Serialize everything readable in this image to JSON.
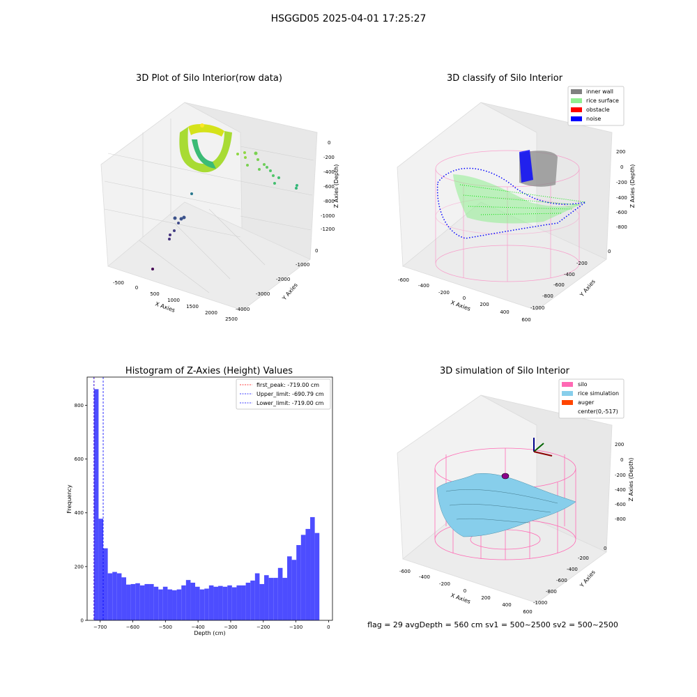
{
  "suptitle": "HSGGD05 2025-04-01 17:25:27",
  "footer": "flag = 29  avgDepth = 560 cm  sv1 = 500~2500  sv2 = 500~2500",
  "colors": {
    "histogram": "#4d4dff",
    "first_peak_line": "#ff0000",
    "limit_line": "#0000ff",
    "inner_wall": "#808080",
    "rice_surface": "#90ee90",
    "obstacle": "#ff0000",
    "noise": "#0000ff",
    "silo": "#ff69b4",
    "rice_simulation": "#87ceeb",
    "auger": "#ff4500"
  },
  "chart_data": [
    {
      "type": "scatter",
      "projection": "3d",
      "title": "3D Plot of Silo Interior(row data)",
      "xlabel": "X Axies",
      "ylabel": "Y Axies",
      "zlabel": "Z Axies (Depth)",
      "x_ticks": [
        "-500",
        "0",
        "500",
        "1000",
        "1500",
        "2000",
        "2500"
      ],
      "y_ticks": [
        "0",
        "-1000",
        "-2000",
        "-3000",
        "-4000"
      ],
      "z_ticks": [
        "0",
        "-200",
        "-400",
        "-600",
        "-800",
        "-1000",
        "-1200"
      ],
      "colormap": "viridis"
    },
    {
      "type": "scatter",
      "projection": "3d",
      "title": "3D classify of Silo Interior",
      "xlabel": "X Axies",
      "ylabel": "Y Axies",
      "zlabel": "Z Axies (Depth)",
      "x_ticks": [
        "-600",
        "-400",
        "-200",
        "0",
        "200",
        "400",
        "600"
      ],
      "y_ticks": [
        "0",
        "-200",
        "-400",
        "-600",
        "-800",
        "-1000"
      ],
      "z_ticks": [
        "200",
        "0",
        "-200",
        "-400",
        "-600",
        "-800"
      ],
      "legend": [
        "inner wall",
        "rice surface",
        "obstacle",
        "noise"
      ],
      "legend_position": "top-right"
    },
    {
      "type": "bar",
      "title": "Histogram of Z-Axies (Height) Values",
      "xlabel": "Depth (cm)",
      "ylabel": "Frequency",
      "xlim": [
        -740,
        12
      ],
      "ylim": [
        0,
        905
      ],
      "x_ticks": [
        -700,
        -600,
        -500,
        -400,
        -300,
        -200,
        -100,
        0
      ],
      "y_ticks": [
        0,
        200,
        400,
        600,
        800
      ],
      "bin_start": -719,
      "bin_width": 14.1,
      "values": [
        860,
        378,
        268,
        175,
        180,
        175,
        160,
        133,
        135,
        138,
        130,
        135,
        135,
        125,
        115,
        125,
        115,
        112,
        115,
        130,
        150,
        140,
        125,
        115,
        118,
        130,
        125,
        128,
        125,
        130,
        123,
        130,
        130,
        140,
        148,
        175,
        135,
        168,
        158,
        158,
        195,
        158,
        238,
        225,
        280,
        318,
        340,
        384,
        325
      ],
      "legend": [
        "first_peak: -719.00 cm",
        "Upper_limit: -690.79 cm",
        "Lower_limit: -719.00 cm"
      ],
      "legend_position": "top-right",
      "vlines": [
        {
          "x": -719.0,
          "style": "dashed",
          "color": "red"
        },
        {
          "x": -690.79,
          "style": "dashed",
          "color": "blue"
        },
        {
          "x": -719.0,
          "style": "dashed",
          "color": "blue"
        }
      ]
    },
    {
      "type": "surface",
      "projection": "3d",
      "title": "3D simulation of Silo Interior",
      "xlabel": "X Axies",
      "ylabel": "Y Axies",
      "zlabel": "Z Axies (Depth)",
      "x_ticks": [
        "-600",
        "-400",
        "-200",
        "0",
        "200",
        "400",
        "600"
      ],
      "y_ticks": [
        "0",
        "-200",
        "-400",
        "-600",
        "-800",
        "-1000"
      ],
      "z_ticks": [
        "200",
        "0",
        "-200",
        "-400",
        "-600",
        "-800"
      ],
      "legend": [
        "silo",
        "rice simulation",
        "auger",
        "center(0,-517)"
      ],
      "legend_position": "top-right"
    }
  ]
}
